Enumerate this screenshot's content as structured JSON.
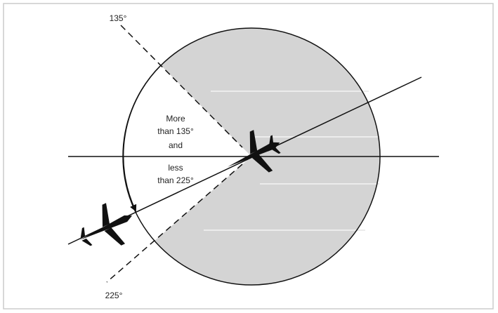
{
  "labels": {
    "angle_upper": "135°",
    "angle_lower": "225°"
  },
  "sector_text": [
    "More",
    "than 135°",
    "and",
    "less",
    "than 225°"
  ]
}
